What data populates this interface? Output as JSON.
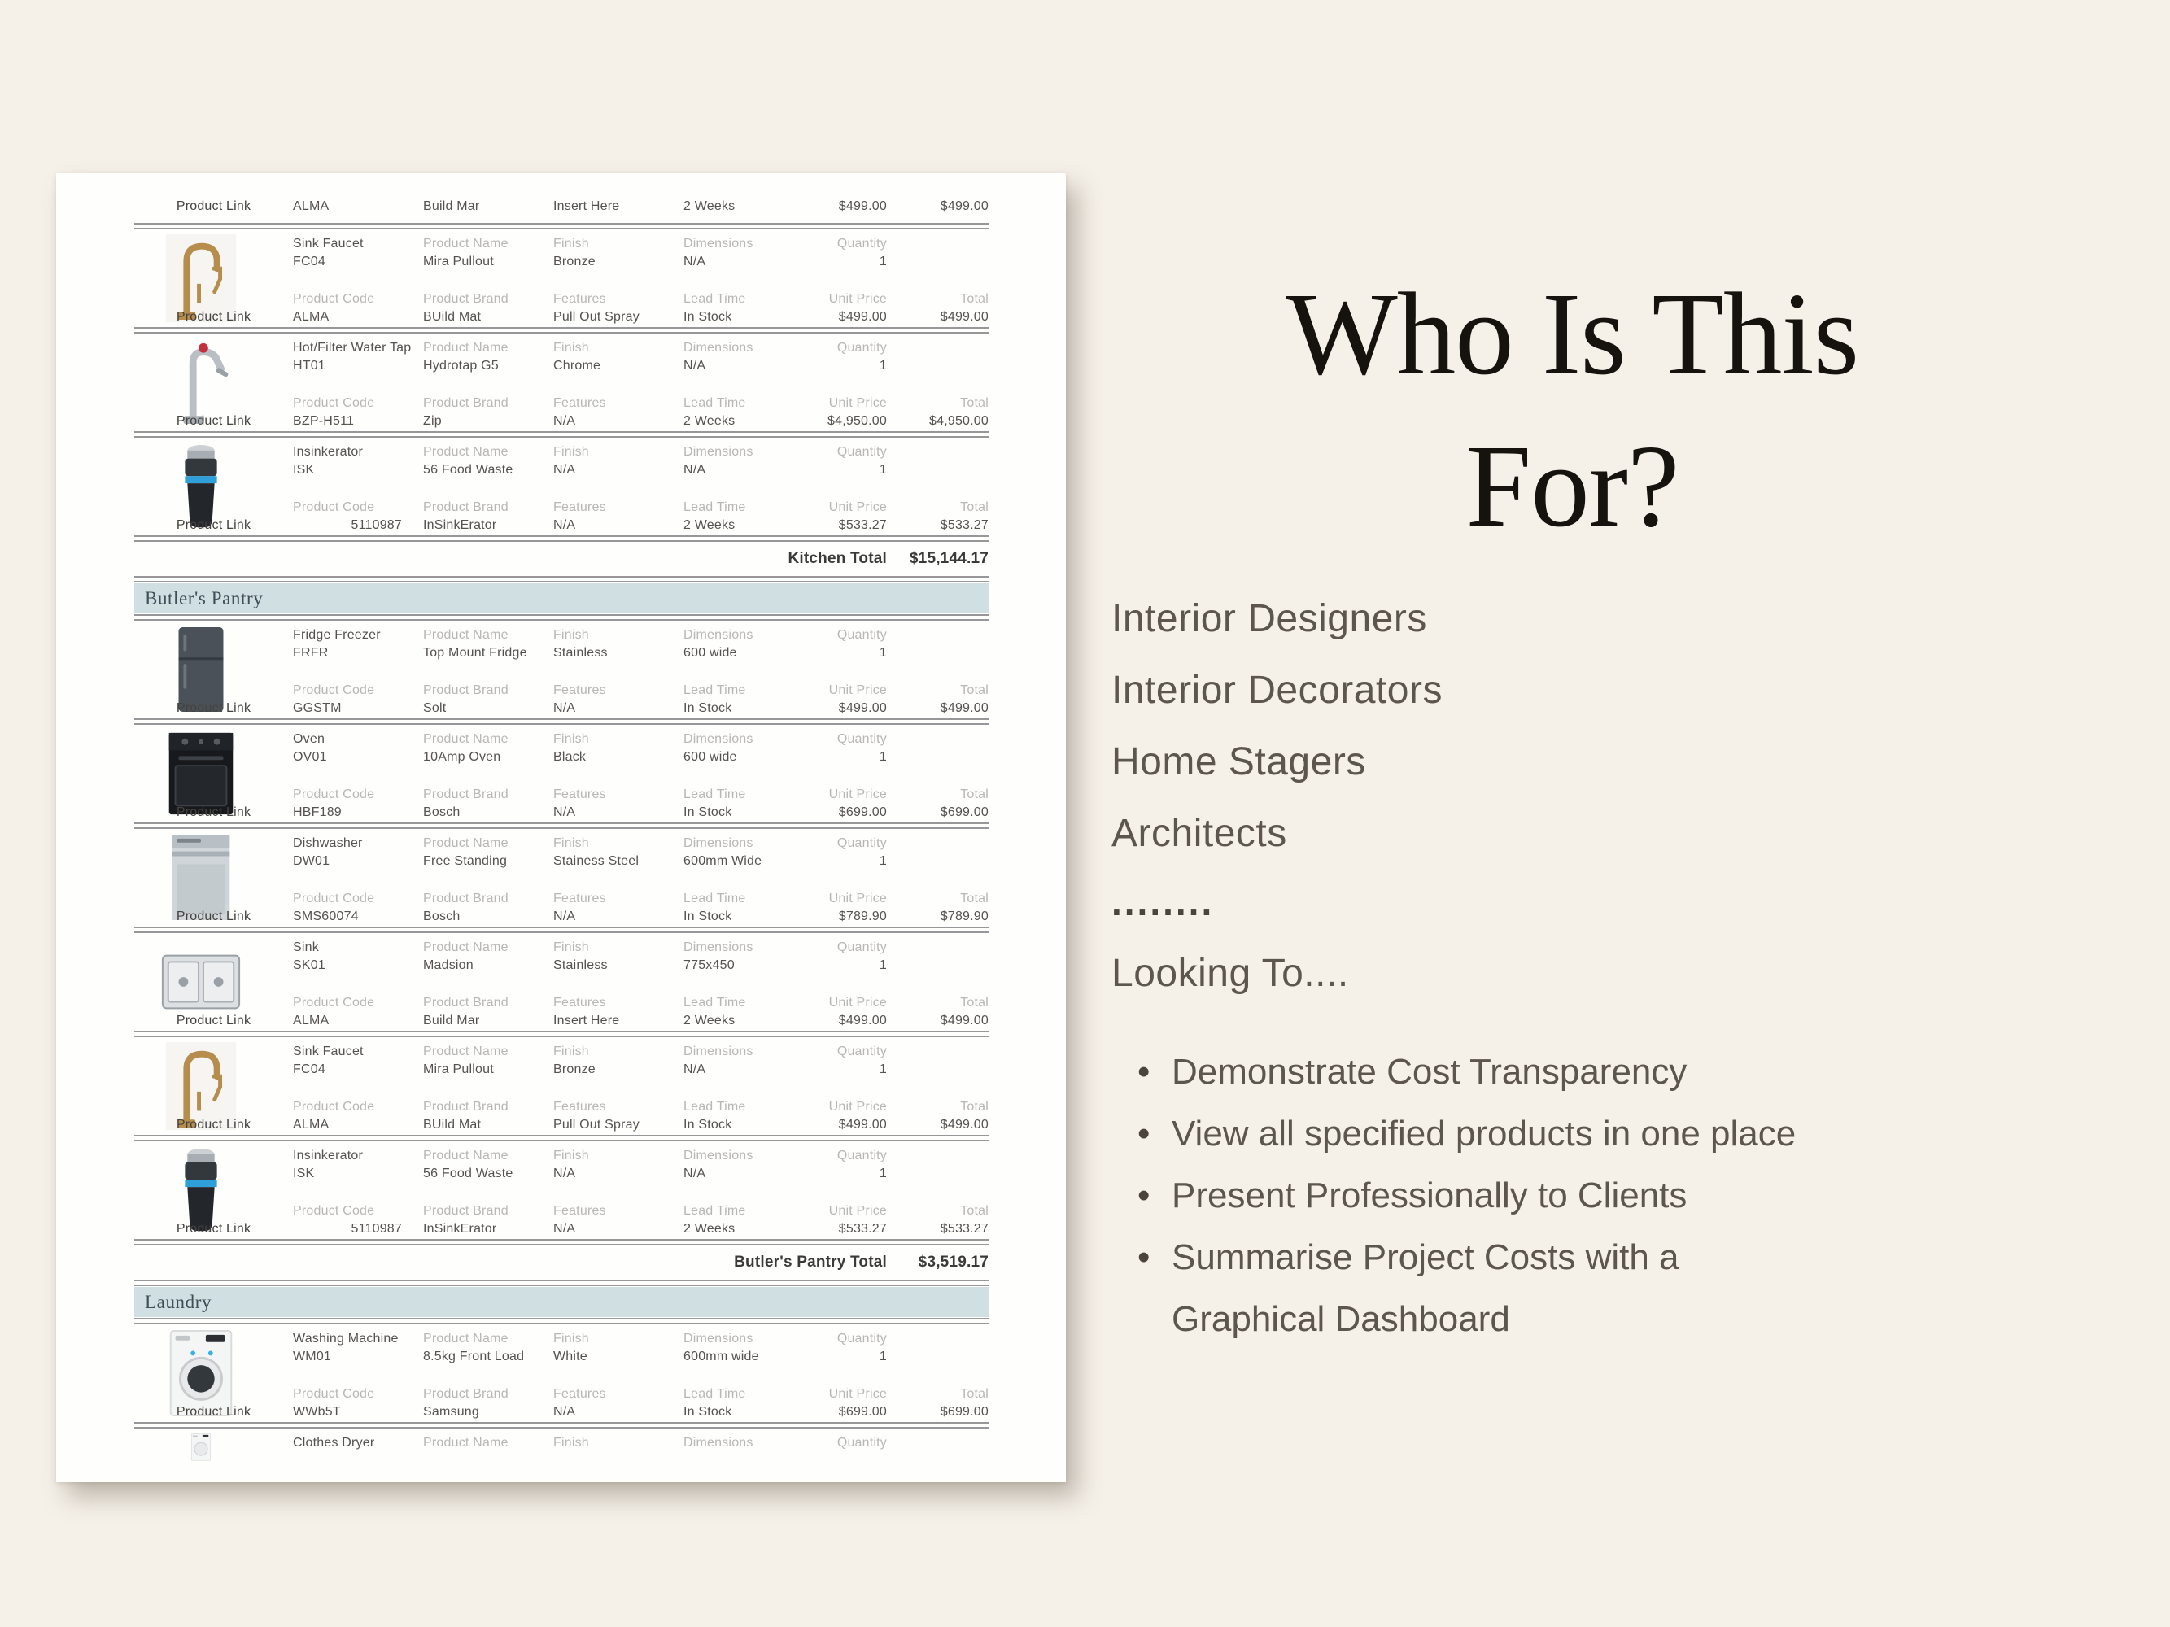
{
  "colors": {
    "background": "#f5f0e8",
    "page": "#fefefd",
    "section_band": "#d0dfe1",
    "label_gray": "#b9b7b3",
    "value_gray": "#56534f",
    "title_black": "#16120e",
    "panel_text": "#5d564e"
  },
  "document": {
    "field_labels": {
      "product_name": "Product Name",
      "finish": "Finish",
      "dimensions": "Dimensions",
      "quantity": "Quantity",
      "product_code": "Product Code",
      "product_brand": "Product Brand",
      "features": "Features",
      "lead_time": "Lead Time",
      "unit_price": "Unit Price",
      "total": "Total",
      "product_link": "Product Link"
    },
    "partial_top_row": {
      "code2": "ALMA",
      "brand": "Build Mar",
      "features": "Insert Here",
      "lead_time": "2 Weeks",
      "unit_price": "$499.00",
      "total": "$499.00"
    },
    "sections": [
      {
        "header": null,
        "total_label": "Kitchen Total",
        "total_value": "$15,144.17",
        "products": [
          {
            "image": "faucet-bronze",
            "type": "Sink Faucet",
            "code": "FC04",
            "name": "Mira Pullout",
            "finish": "Bronze",
            "dimensions": "N/A",
            "quantity": "1",
            "code2": "ALMA",
            "brand": "BUild Mat",
            "features": "Pull Out Spray",
            "lead_time": "In Stock",
            "unit_price": "$499.00",
            "total": "$499.00"
          },
          {
            "image": "tap-chrome",
            "type": "Hot/Filter Water Tap",
            "code": "HT01",
            "name": "Hydrotap G5",
            "finish": "Chrome",
            "dimensions": "N/A",
            "quantity": "1",
            "code2": "BZP-H511",
            "brand": "Zip",
            "features": "N/A",
            "lead_time": "2 Weeks",
            "unit_price": "$4,950.00",
            "total": "$4,950.00"
          },
          {
            "image": "disposal",
            "type": "Insinkerator",
            "code": "ISK",
            "name": "56 Food Waste",
            "finish": "N/A",
            "dimensions": "N/A",
            "quantity": "1",
            "code2": "5110987",
            "code2_numeric": true,
            "brand": "InSinkErator",
            "features": "N/A",
            "lead_time": "2 Weeks",
            "unit_price": "$533.27",
            "total": "$533.27"
          }
        ]
      },
      {
        "header": "Butler's Pantry",
        "total_label": "Butler's Pantry Total",
        "total_value": "$3,519.17",
        "products": [
          {
            "image": "fridge-dark",
            "type": "Fridge Freezer",
            "code": "FRFR",
            "name": "Top Mount Fridge",
            "finish": "Stainless",
            "dimensions": "600 wide",
            "quantity": "1",
            "code2": "GGSTM",
            "brand": "Solt",
            "features": "N/A",
            "lead_time": "In Stock",
            "unit_price": "$499.00",
            "total": "$499.00"
          },
          {
            "image": "oven-black",
            "type": "Oven",
            "code": "OV01",
            "name": "10Amp Oven",
            "finish": "Black",
            "dimensions": "600 wide",
            "quantity": "1",
            "code2": "HBF189",
            "brand": "Bosch",
            "features": "N/A",
            "lead_time": "In Stock",
            "unit_price": "$699.00",
            "total": "$699.00"
          },
          {
            "image": "dishwasher-silver",
            "type": "Dishwasher",
            "code": "DW01",
            "name": "Free Standing",
            "finish": "Stainess Steel",
            "dimensions": "600mm Wide",
            "quantity": "1",
            "code2": "SMS60074",
            "brand": "Bosch",
            "features": "N/A",
            "lead_time": "In Stock",
            "unit_price": "$789.90",
            "total": "$789.90"
          },
          {
            "image": "sink-steel",
            "type": "Sink",
            "code": "SK01",
            "name": "Madsion",
            "finish": "Stainless",
            "dimensions": "775x450",
            "quantity": "1",
            "code2": "ALMA",
            "brand": "Build Mar",
            "features": "Insert Here",
            "lead_time": "2 Weeks",
            "unit_price": "$499.00",
            "total": "$499.00"
          },
          {
            "image": "faucet-bronze",
            "type": "Sink Faucet",
            "code": "FC04",
            "name": "Mira Pullout",
            "finish": "Bronze",
            "dimensions": "N/A",
            "quantity": "1",
            "code2": "ALMA",
            "brand": "BUild Mat",
            "features": "Pull Out Spray",
            "lead_time": "In Stock",
            "unit_price": "$499.00",
            "total": "$499.00"
          },
          {
            "image": "disposal",
            "type": "Insinkerator",
            "code": "ISK",
            "name": "56 Food Waste",
            "finish": "N/A",
            "dimensions": "N/A",
            "quantity": "1",
            "code2": "5110987",
            "code2_numeric": true,
            "brand": "InSinkErator",
            "features": "N/A",
            "lead_time": "2 Weeks",
            "unit_price": "$533.27",
            "total": "$533.27"
          }
        ]
      },
      {
        "header": "Laundry",
        "total_label": null,
        "total_value": null,
        "products": [
          {
            "image": "washer-white",
            "type": "Washing Machine",
            "code": "WM01",
            "name": "8.5kg Front Load",
            "finish": "White",
            "dimensions": "600mm wide",
            "quantity": "1",
            "code2": "WWb5T",
            "brand": "Samsung",
            "features": "N/A",
            "lead_time": "In Stock",
            "unit_price": "$699.00",
            "total": "$699.00"
          },
          {
            "image": "dryer-white",
            "type": "Clothes Dryer",
            "partial": true
          }
        ]
      }
    ]
  },
  "panel": {
    "title_line1": "Who Is This",
    "title_line2": "For?",
    "audiences": [
      "Interior Designers",
      "Interior Decorators",
      "Home Stagers",
      "Architects"
    ],
    "dots": "........",
    "subheading": "Looking To....",
    "bullets": [
      "Demonstrate Cost Transparency",
      "View all specified products in one place",
      "Present Professionally to Clients",
      "Summarise Project Costs with a Graphical Dashboard"
    ]
  }
}
